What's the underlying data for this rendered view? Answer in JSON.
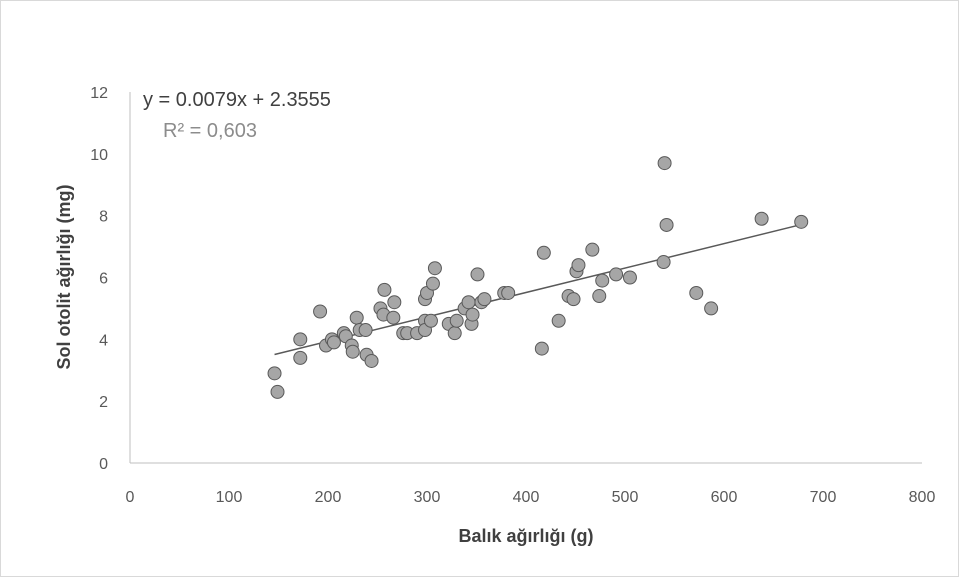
{
  "chart_data": {
    "type": "scatter",
    "title": "",
    "xlabel": "Balık ağırlığı (g)",
    "ylabel": "Sol otolit ağırlığı (mg)",
    "xlim": [
      0,
      800
    ],
    "ylim": [
      0,
      12
    ],
    "x_ticks": [
      "0",
      "100",
      "200",
      "300",
      "400",
      "500",
      "600",
      "700",
      "800"
    ],
    "y_ticks": [
      "0",
      "2",
      "4",
      "6",
      "8",
      "10",
      "12"
    ],
    "grid": false,
    "legend": "none",
    "trendline": {
      "type": "linear",
      "slope": 0.0079,
      "intercept": 2.3555,
      "x_range": [
        146,
        678
      ],
      "equation_label": "y = 0.0079x + 2.3555",
      "r2_label": "R² = 0,603"
    },
    "marker_color": "#a6a6a6",
    "marker_edge_color": "#595959",
    "line_color": "#595959",
    "points": [
      [
        146,
        2.9
      ],
      [
        149,
        2.3
      ],
      [
        172,
        4.0
      ],
      [
        172,
        3.4
      ],
      [
        192,
        4.9
      ],
      [
        198,
        3.8
      ],
      [
        204,
        4.0
      ],
      [
        206,
        3.9
      ],
      [
        216,
        4.2
      ],
      [
        218,
        4.1
      ],
      [
        224,
        3.8
      ],
      [
        225,
        3.6
      ],
      [
        229,
        4.7
      ],
      [
        232,
        4.3
      ],
      [
        238,
        4.3
      ],
      [
        239,
        3.5
      ],
      [
        244,
        3.3
      ],
      [
        253,
        5.0
      ],
      [
        256,
        4.8
      ],
      [
        257,
        5.6
      ],
      [
        266,
        4.7
      ],
      [
        267,
        5.2
      ],
      [
        276,
        4.2
      ],
      [
        280,
        4.2
      ],
      [
        290,
        4.2
      ],
      [
        298,
        5.3
      ],
      [
        298,
        4.6
      ],
      [
        298,
        4.3
      ],
      [
        300,
        5.5
      ],
      [
        304,
        4.6
      ],
      [
        306,
        5.8
      ],
      [
        308,
        6.3
      ],
      [
        322,
        4.5
      ],
      [
        328,
        4.2
      ],
      [
        330,
        4.6
      ],
      [
        338,
        5.0
      ],
      [
        342,
        5.2
      ],
      [
        345,
        4.5
      ],
      [
        346,
        4.8
      ],
      [
        351,
        6.1
      ],
      [
        355,
        5.2
      ],
      [
        358,
        5.3
      ],
      [
        378,
        5.5
      ],
      [
        382,
        5.5
      ],
      [
        416,
        3.7
      ],
      [
        418,
        6.8
      ],
      [
        433,
        4.6
      ],
      [
        443,
        5.4
      ],
      [
        448,
        5.3
      ],
      [
        451,
        6.2
      ],
      [
        453,
        6.4
      ],
      [
        467,
        6.9
      ],
      [
        474,
        5.4
      ],
      [
        477,
        5.9
      ],
      [
        491,
        6.1
      ],
      [
        505,
        6.0
      ],
      [
        539,
        6.5
      ],
      [
        540,
        9.7
      ],
      [
        542,
        7.7
      ],
      [
        572,
        5.5
      ],
      [
        587,
        5.0
      ],
      [
        638,
        7.9
      ],
      [
        678,
        7.8
      ]
    ]
  }
}
